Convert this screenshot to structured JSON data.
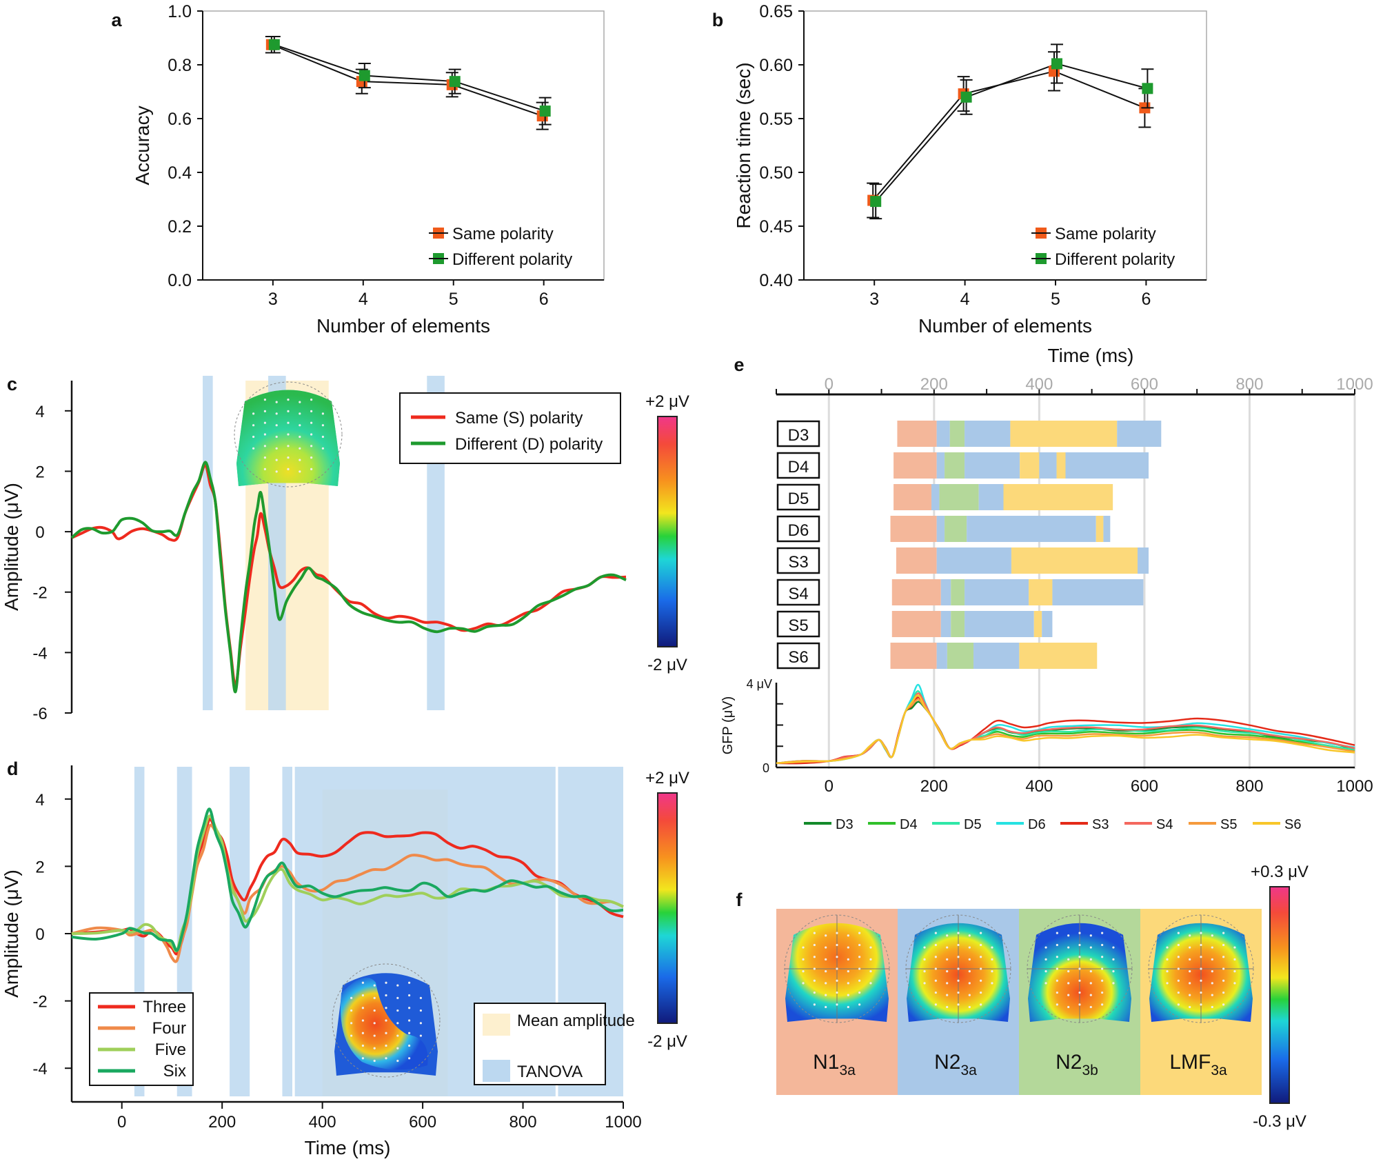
{
  "chart_data": [
    {
      "id": "a",
      "type": "line",
      "panel_label": "a",
      "xlabel": "Number of elements",
      "ylabel": "Accuracy",
      "categories": [
        "3",
        "4",
        "5",
        "6"
      ],
      "ylim": [
        0.0,
        1.0
      ],
      "yticks": [
        "0.0",
        "0.2",
        "0.4",
        "0.6",
        "0.8",
        "1.0"
      ],
      "series": [
        {
          "name": "Same polarity",
          "color": "#f05a1a",
          "values": [
            0.875,
            0.738,
            0.726,
            0.61
          ],
          "err": [
            0.03,
            0.045,
            0.045,
            0.05
          ]
        },
        {
          "name": "Different polarity",
          "color": "#1e9a2e",
          "values": [
            0.875,
            0.76,
            0.738,
            0.628
          ],
          "err": [
            0.03,
            0.045,
            0.045,
            0.05
          ]
        }
      ]
    },
    {
      "id": "b",
      "type": "line",
      "panel_label": "b",
      "xlabel": "Number of elements",
      "ylabel": "Reaction time (sec)",
      "categories": [
        "3",
        "4",
        "5",
        "6"
      ],
      "ylim": [
        0.4,
        0.65
      ],
      "yticks": [
        "0.40",
        "0.45",
        "0.50",
        "0.55",
        "0.60",
        "0.65"
      ],
      "series": [
        {
          "name": "Same polarity",
          "color": "#f05a1a",
          "values": [
            0.474,
            0.573,
            0.594,
            0.56
          ],
          "err": [
            0.016,
            0.016,
            0.018,
            0.018
          ]
        },
        {
          "name": "Different polarity",
          "color": "#1e9a2e",
          "values": [
            0.473,
            0.57,
            0.601,
            0.578
          ],
          "err": [
            0.016,
            0.016,
            0.018,
            0.018
          ]
        }
      ]
    },
    {
      "id": "c",
      "type": "line",
      "panel_label": "c",
      "ylabel": "Amplitude (μV)",
      "xlim": [
        -100,
        1000
      ],
      "ylim": [
        -6,
        5
      ],
      "yticks": [
        "4",
        "2",
        "0",
        "-2",
        "-4",
        "-6"
      ],
      "tanova_windows": [
        [
          160,
          180
        ],
        [
          290,
          325
        ],
        [
          605,
          640
        ]
      ],
      "mean_windows": [
        [
          245,
          410
        ]
      ],
      "colorbar": {
        "max": "+2 μV",
        "min": "-2 μV"
      },
      "series": [
        {
          "name": "Same (S) polarity",
          "color": "#ee2a1e",
          "x": [
            -100,
            -60,
            -20,
            0,
            40,
            80,
            110,
            140,
            165,
            185,
            205,
            225,
            245,
            262,
            275,
            292,
            312,
            340,
            370,
            400,
            450,
            500,
            550,
            600,
            650,
            700,
            750,
            800,
            850,
            900,
            950,
            1000
          ],
          "y": [
            -0.2,
            0.1,
            0.0,
            -0.2,
            0.1,
            -0.1,
            -0.2,
            1.2,
            2.2,
            1.0,
            -2.5,
            -5.1,
            -2.6,
            -0.6,
            0.6,
            -0.6,
            -1.8,
            -1.6,
            -1.2,
            -1.5,
            -2.3,
            -2.7,
            -2.8,
            -3.0,
            -3.1,
            -3.2,
            -3.1,
            -2.7,
            -2.3,
            -1.9,
            -1.5,
            -1.5
          ]
        },
        {
          "name": "Different (D) polarity",
          "color": "#1e9a2e",
          "x": [
            -100,
            -60,
            -20,
            0,
            40,
            80,
            110,
            140,
            165,
            185,
            205,
            225,
            245,
            262,
            275,
            292,
            312,
            340,
            370,
            400,
            450,
            500,
            550,
            600,
            650,
            700,
            750,
            800,
            850,
            900,
            950,
            1000
          ],
          "y": [
            -0.2,
            0.1,
            0.0,
            0.4,
            0.3,
            0.0,
            -0.1,
            1.3,
            2.3,
            1.0,
            -2.6,
            -5.3,
            -2.0,
            0.2,
            1.3,
            -0.5,
            -2.9,
            -1.9,
            -1.2,
            -1.6,
            -2.4,
            -2.8,
            -3.0,
            -3.2,
            -3.2,
            -3.3,
            -3.1,
            -2.8,
            -2.3,
            -1.9,
            -1.5,
            -1.6
          ]
        }
      ]
    },
    {
      "id": "d",
      "type": "line",
      "panel_label": "d",
      "xlabel": "Time (ms)",
      "ylabel": "Amplitude (μV)",
      "xlim": [
        -100,
        1000
      ],
      "ylim": [
        -5,
        5
      ],
      "xticks": [
        "0",
        "200",
        "400",
        "600",
        "800",
        "1000"
      ],
      "yticks": [
        "4",
        "2",
        "0",
        "-2",
        "-4"
      ],
      "tanova_windows": [
        [
          25,
          45
        ],
        [
          110,
          140
        ],
        [
          215,
          255
        ],
        [
          320,
          340
        ],
        [
          345,
          865
        ],
        [
          870,
          1000
        ]
      ],
      "mean_windows": [
        [
          400,
          650
        ]
      ],
      "legend_boxes": {
        "mean": "Mean amplitude",
        "tanova": "TANOVA"
      },
      "colorbar": {
        "max": "+2 μV",
        "min": "-2 μV"
      },
      "series": [
        {
          "name": "Three",
          "color": "#ee2a1e",
          "x": [
            -100,
            0,
            30,
            60,
            90,
            110,
            130,
            150,
            175,
            200,
            220,
            245,
            265,
            290,
            320,
            350,
            400,
            450,
            500,
            550,
            600,
            650,
            700,
            750,
            800,
            850,
            900,
            950,
            1000
          ],
          "y": [
            0.0,
            0.1,
            0.0,
            0.1,
            -0.3,
            -0.6,
            0.4,
            2.2,
            3.4,
            2.8,
            1.6,
            1.0,
            1.6,
            2.3,
            2.8,
            2.4,
            2.3,
            2.7,
            3.0,
            2.9,
            3.0,
            2.7,
            2.6,
            2.3,
            2.1,
            1.6,
            1.2,
            0.9,
            0.5
          ]
        },
        {
          "name": "Four",
          "color": "#ef8a4a",
          "x": [
            -100,
            0,
            30,
            60,
            90,
            110,
            130,
            150,
            175,
            200,
            220,
            245,
            265,
            290,
            320,
            350,
            400,
            450,
            500,
            550,
            600,
            650,
            700,
            750,
            800,
            850,
            900,
            950,
            1000
          ],
          "y": [
            0.0,
            0.1,
            0.0,
            0.1,
            -0.4,
            -0.8,
            0.3,
            2.0,
            3.2,
            2.6,
            1.4,
            0.6,
            1.2,
            1.7,
            2.0,
            1.5,
            1.3,
            1.6,
            1.9,
            2.1,
            2.3,
            2.2,
            2.0,
            1.7,
            1.5,
            1.6,
            1.2,
            0.9,
            0.8
          ]
        },
        {
          "name": "Five",
          "color": "#9fcf5a",
          "x": [
            -100,
            0,
            30,
            60,
            90,
            110,
            130,
            150,
            175,
            200,
            220,
            245,
            265,
            290,
            320,
            350,
            400,
            450,
            500,
            550,
            600,
            650,
            700,
            750,
            800,
            850,
            900,
            950,
            1000
          ],
          "y": [
            0.0,
            0.1,
            0.1,
            0.2,
            -0.2,
            -0.5,
            0.5,
            2.3,
            3.5,
            2.7,
            1.3,
            0.4,
            0.6,
            1.4,
            1.9,
            1.3,
            1.0,
            1.0,
            1.0,
            1.1,
            1.2,
            1.1,
            1.3,
            1.4,
            1.5,
            1.4,
            1.1,
            1.0,
            0.8
          ]
        },
        {
          "name": "Six",
          "color": "#1aa860",
          "x": [
            -100,
            0,
            30,
            60,
            90,
            110,
            130,
            150,
            175,
            200,
            220,
            245,
            265,
            290,
            320,
            350,
            400,
            450,
            500,
            550,
            600,
            650,
            700,
            750,
            800,
            850,
            900,
            950,
            1000
          ],
          "y": [
            -0.1,
            0.0,
            0.1,
            0.0,
            -0.2,
            -0.5,
            0.6,
            2.5,
            3.7,
            2.5,
            1.0,
            0.2,
            0.8,
            1.7,
            2.1,
            1.4,
            1.2,
            1.2,
            1.3,
            1.3,
            1.5,
            1.1,
            1.3,
            1.4,
            1.5,
            1.4,
            1.1,
            0.9,
            0.7
          ]
        }
      ]
    },
    {
      "id": "e",
      "type": "bar",
      "panel_label": "e",
      "xlabel": "Time (ms)",
      "xlim": [
        -100,
        1000
      ],
      "xticks": [
        "0",
        "200",
        "400",
        "600",
        "800",
        "1000"
      ],
      "segment_colors": {
        "N1": "#f4b79a",
        "N2a": "#a9c8e8",
        "N2b": "#b4d89a",
        "LMF": "#fcd97a"
      },
      "rows": [
        {
          "label": "D3",
          "segments": [
            [
              "N1",
              130,
              205
            ],
            [
              "N2a",
              205,
              230
            ],
            [
              "N2b",
              230,
              258
            ],
            [
              "N2a",
              258,
              345
            ],
            [
              "LMF",
              345,
              548
            ],
            [
              "N2a",
              548,
              632
            ]
          ]
        },
        {
          "label": "D4",
          "segments": [
            [
              "N1",
              123,
              205
            ],
            [
              "N2a",
              205,
              220
            ],
            [
              "N2b",
              220,
              258
            ],
            [
              "N2a",
              258,
              363
            ],
            [
              "LMF",
              363,
              400
            ],
            [
              "N2a",
              400,
              433
            ],
            [
              "LMF",
              433,
              450
            ],
            [
              "N2a",
              450,
              608
            ]
          ]
        },
        {
          "label": "D5",
          "segments": [
            [
              "N1",
              123,
              195
            ],
            [
              "N2a",
              195,
              210
            ],
            [
              "N2b",
              210,
              285
            ],
            [
              "N2a",
              285,
              332
            ],
            [
              "LMF",
              332,
              540
            ]
          ]
        },
        {
          "label": "D6",
          "segments": [
            [
              "N1",
              117,
              205
            ],
            [
              "N2a",
              205,
              220
            ],
            [
              "N2b",
              220,
              262
            ],
            [
              "N2a",
              262,
              508
            ],
            [
              "LMF",
              508,
              522
            ],
            [
              "N2a",
              522,
              535
            ]
          ]
        },
        {
          "label": "S3",
          "segments": [
            [
              "N1",
              128,
              205
            ],
            [
              "N2a",
              205,
              347
            ],
            [
              "LMF",
              347,
              587
            ],
            [
              "N2a",
              587,
              608
            ]
          ]
        },
        {
          "label": "S4",
          "segments": [
            [
              "N1",
              120,
              213
            ],
            [
              "N2a",
              213,
              232
            ],
            [
              "N2b",
              232,
              258
            ],
            [
              "N2a",
              258,
              380
            ],
            [
              "LMF",
              380,
              425
            ],
            [
              "N2a",
              425,
              598
            ]
          ]
        },
        {
          "label": "S5",
          "segments": [
            [
              "N1",
              120,
              213
            ],
            [
              "N2a",
              213,
              232
            ],
            [
              "N2b",
              232,
              258
            ],
            [
              "N2a",
              258,
              390
            ],
            [
              "LMF",
              390,
              405
            ],
            [
              "N2a",
              405,
              425
            ]
          ]
        },
        {
          "label": "S6",
          "segments": [
            [
              "N1",
              117,
              205
            ],
            [
              "N2a",
              205,
              225
            ],
            [
              "N2b",
              225,
              275
            ],
            [
              "N2a",
              275,
              362
            ],
            [
              "LMF",
              362,
              510
            ]
          ]
        }
      ],
      "gfp": {
        "ylabel": "GFP (μV)",
        "ytick_top": "4 μV",
        "ytick_bottom": "0",
        "series": [
          {
            "name": "D3",
            "color": "#138a2a",
            "peak": 3.1,
            "late": 1.75
          },
          {
            "name": "D4",
            "color": "#30c02a",
            "peak": 3.4,
            "late": 1.6
          },
          {
            "name": "D5",
            "color": "#2fe7a8",
            "peak": 3.6,
            "late": 1.7
          },
          {
            "name": "D6",
            "color": "#26e2e2",
            "peak": 3.9,
            "late": 1.9
          },
          {
            "name": "S3",
            "color": "#e42a18",
            "peak": 3.3,
            "late": 2.1
          },
          {
            "name": "S4",
            "color": "#f4685e",
            "peak": 3.5,
            "late": 1.8
          },
          {
            "name": "S5",
            "color": "#f59a3c",
            "peak": 3.2,
            "late": 1.5
          },
          {
            "name": "S6",
            "color": "#f8c62a",
            "peak": 3.4,
            "late": 1.4
          }
        ]
      }
    },
    {
      "id": "f",
      "type": "heatmap",
      "panel_label": "f",
      "maps": [
        {
          "label": "N1",
          "sub": "3a",
          "bg": "#f4b79a"
        },
        {
          "label": "N2",
          "sub": "3a",
          "bg": "#a9c8e8"
        },
        {
          "label": "N2",
          "sub": "3b",
          "bg": "#b4d89a"
        },
        {
          "label": "LMF",
          "sub": "3a",
          "bg": "#fcd97a"
        }
      ],
      "colorbar": {
        "max": "+0.3 μV",
        "min": "-0.3 μV"
      }
    }
  ]
}
